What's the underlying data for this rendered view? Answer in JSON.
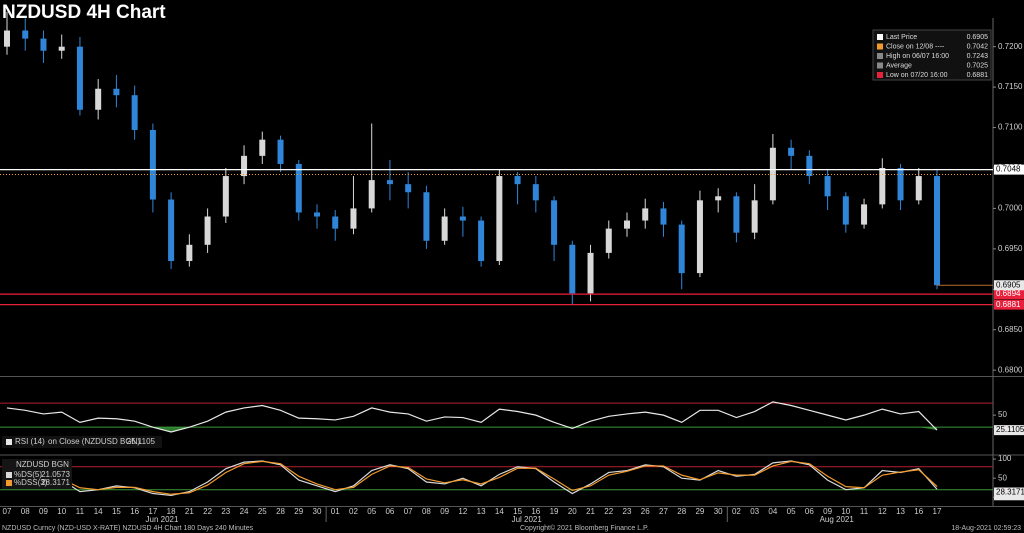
{
  "chart_data": [
    {
      "type": "candlestick",
      "title": "NZDUSD 4H Chart",
      "categories": [
        "07",
        "08",
        "09",
        "10",
        "11",
        "14",
        "15",
        "16",
        "17",
        "18",
        "21",
        "22",
        "23",
        "24",
        "25",
        "28",
        "29",
        "30",
        "01",
        "02",
        "05",
        "06",
        "07",
        "08",
        "09",
        "12",
        "13",
        "14",
        "15",
        "16",
        "19",
        "20",
        "21",
        "22",
        "23",
        "26",
        "27",
        "28",
        "29",
        "30",
        "02",
        "03",
        "04",
        "05",
        "06",
        "09",
        "10",
        "11",
        "12",
        "13",
        "16",
        "17"
      ],
      "months": [
        "Jun 2021",
        "Jul 2021",
        "Aug 2021"
      ],
      "open": [
        0.72,
        0.722,
        0.721,
        0.7195,
        0.72,
        0.7122,
        0.7148,
        0.714,
        0.7097,
        0.7011,
        0.6935,
        0.6955,
        0.699,
        0.704,
        0.7065,
        0.7085,
        0.7055,
        0.6995,
        0.699,
        0.6975,
        0.7,
        0.7035,
        0.703,
        0.702,
        0.696,
        0.699,
        0.6985,
        0.6935,
        0.704,
        0.703,
        0.701,
        0.6955,
        0.6895,
        0.6945,
        0.6975,
        0.6985,
        0.7,
        0.698,
        0.692,
        0.701,
        0.7015,
        0.697,
        0.701,
        0.7075,
        0.7065,
        0.704,
        0.7015,
        0.698,
        0.7005,
        0.705,
        0.701,
        0.704
      ],
      "high": [
        0.7243,
        0.7235,
        0.722,
        0.7215,
        0.7212,
        0.716,
        0.7165,
        0.7152,
        0.7105,
        0.702,
        0.6968,
        0.7,
        0.705,
        0.7078,
        0.7095,
        0.709,
        0.706,
        0.7005,
        0.6998,
        0.704,
        0.7105,
        0.706,
        0.7045,
        0.7028,
        0.7,
        0.7002,
        0.699,
        0.7048,
        0.7045,
        0.704,
        0.7015,
        0.696,
        0.6955,
        0.6985,
        0.6995,
        0.7012,
        0.7008,
        0.6985,
        0.7022,
        0.7025,
        0.702,
        0.703,
        0.7092,
        0.7085,
        0.7072,
        0.7048,
        0.702,
        0.7012,
        0.7062,
        0.7055,
        0.705,
        0.7048
      ],
      "low": [
        0.719,
        0.7195,
        0.718,
        0.7185,
        0.7115,
        0.711,
        0.7125,
        0.7085,
        0.6995,
        0.6925,
        0.6928,
        0.6945,
        0.6982,
        0.703,
        0.7055,
        0.7045,
        0.6985,
        0.6975,
        0.696,
        0.6968,
        0.6995,
        0.701,
        0.7,
        0.695,
        0.6955,
        0.6965,
        0.6928,
        0.693,
        0.7005,
        0.6995,
        0.6935,
        0.6881,
        0.6885,
        0.6938,
        0.6965,
        0.6975,
        0.6965,
        0.69,
        0.6915,
        0.6995,
        0.6958,
        0.6962,
        0.7005,
        0.7048,
        0.703,
        0.6998,
        0.697,
        0.6975,
        0.7,
        0.6998,
        0.7005,
        0.69
      ],
      "close": [
        0.722,
        0.721,
        0.7195,
        0.72,
        0.7122,
        0.7148,
        0.714,
        0.7097,
        0.7011,
        0.6935,
        0.6955,
        0.699,
        0.704,
        0.7065,
        0.7085,
        0.7055,
        0.6995,
        0.699,
        0.6975,
        0.7,
        0.7035,
        0.703,
        0.702,
        0.696,
        0.699,
        0.6985,
        0.6935,
        0.704,
        0.703,
        0.701,
        0.6955,
        0.6895,
        0.6945,
        0.6975,
        0.6985,
        0.7,
        0.698,
        0.692,
        0.701,
        0.7015,
        0.697,
        0.701,
        0.7075,
        0.7065,
        0.704,
        0.7015,
        0.698,
        0.7005,
        0.705,
        0.701,
        0.704,
        0.6905
      ],
      "up_color": "#d8d8d8",
      "down_color": "#2f86d8",
      "ylim": [
        0.6794,
        0.7233
      ],
      "yticks": [
        {
          "value": 0.68,
          "label": "0.6800"
        },
        {
          "value": 0.685,
          "label": "0.6850"
        },
        {
          "value": 0.69,
          "label": "0.6900"
        },
        {
          "value": 0.695,
          "label": "0.6950"
        },
        {
          "value": 0.7,
          "label": "0.7000"
        },
        {
          "value": 0.705,
          "label": "0.7050"
        },
        {
          "value": 0.71,
          "label": "0.7100"
        },
        {
          "value": 0.715,
          "label": "0.7150"
        },
        {
          "value": 0.72,
          "label": "0.7200"
        }
      ],
      "price_lines": [
        {
          "value": 0.7048,
          "color": "#ffffff"
        },
        {
          "value": 0.6894,
          "color": "#e8203c"
        }
      ],
      "legend": [
        {
          "name": "Last Price",
          "value": 0.6905,
          "color": "#ffffff",
          "line": "last"
        },
        {
          "name": "Close on 12/08 ----",
          "value": 0.7042,
          "color": "#f29a2e",
          "line": "dotted"
        },
        {
          "name": "High on 06/07 16:00",
          "value": 0.7243,
          "color": "#888888"
        },
        {
          "name": "Average",
          "value": 0.7025,
          "color": "#888888"
        },
        {
          "name": "Low on 07/20 16:00",
          "value": 0.6881,
          "color": "#e8203c",
          "line": "solid"
        }
      ]
    },
    {
      "type": "line",
      "title": "RSI (14)",
      "subtitle": "on Close (NZDUSD BGN)",
      "series": [
        {
          "name": "RSI (14)",
          "color": "#e8e8e8",
          "values": [
            62,
            58,
            52,
            55,
            38,
            45,
            44,
            40,
            30,
            22,
            30,
            40,
            55,
            62,
            66,
            58,
            45,
            44,
            42,
            48,
            62,
            55,
            52,
            40,
            47,
            46,
            38,
            60,
            56,
            50,
            38,
            28,
            40,
            48,
            52,
            55,
            50,
            38,
            58,
            58,
            46,
            56,
            72,
            66,
            58,
            50,
            42,
            50,
            60,
            52,
            56,
            25.1105
          ]
        }
      ],
      "ylim": [
        22,
        110
      ],
      "yticks": [
        50
      ],
      "hlines": [
        {
          "value": 70,
          "color": "#b3202c"
        },
        {
          "value": 30,
          "color": "#3a9a3a"
        }
      ],
      "fill_below": 30
    },
    {
      "type": "line",
      "title": "NZDUSD BGN",
      "series": [
        {
          "name": "%DS(5)",
          "color": "#d9d9d9",
          "values": [
            80,
            70,
            55,
            45,
            15,
            20,
            30,
            25,
            10,
            5,
            15,
            40,
            75,
            92,
            95,
            85,
            45,
            30,
            15,
            30,
            70,
            85,
            75,
            40,
            35,
            50,
            30,
            60,
            80,
            75,
            40,
            10,
            35,
            65,
            70,
            85,
            80,
            50,
            45,
            70,
            55,
            60,
            90,
            95,
            85,
            45,
            20,
            25,
            70,
            65,
            75,
            21.0573
          ]
        },
        {
          "name": "%DSS(3)",
          "color": "#f29a2e",
          "values": [
            78,
            72,
            60,
            48,
            25,
            20,
            26,
            26,
            15,
            8,
            12,
            32,
            65,
            88,
            94,
            88,
            55,
            35,
            20,
            26,
            60,
            82,
            78,
            48,
            38,
            46,
            35,
            52,
            76,
            76,
            48,
            18,
            30,
            58,
            68,
            82,
            82,
            58,
            46,
            64,
            58,
            58,
            82,
            94,
            88,
            55,
            28,
            25,
            58,
            66,
            72,
            28.3171
          ]
        }
      ],
      "ylim": [
        -20,
        108
      ],
      "yticks": [
        100,
        50,
        0
      ],
      "hlines": [
        {
          "value": 80,
          "color": "#b3202c"
        },
        {
          "value": 20,
          "color": "#3a9a3a"
        }
      ]
    }
  ],
  "footer": {
    "left": "NZDUSD Curncy (NZD-USD X-RATE) NZDUSD 4H Chart 180 Days 240 Minutes",
    "center": "Copyright© 2021 Bloomberg Finance L.P.",
    "right": "18-Aug-2021 02:59:23"
  }
}
